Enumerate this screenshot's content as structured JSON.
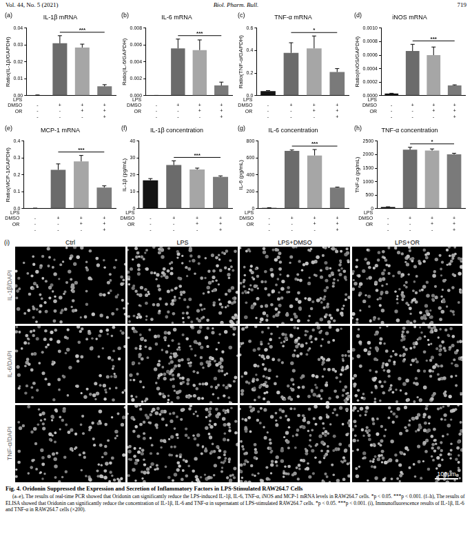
{
  "header": {
    "volume": "Vol. 44, No. 5 (2021)",
    "journal": "Biol. Pharm. Bull.",
    "page": "719"
  },
  "chart_data": [
    {
      "panel": "(a)",
      "type": "bar",
      "title": "IL-1β mRNA",
      "y_label": "Ratio(IL-1β/GAPDH)",
      "categories": [
        [
          "-",
          "-",
          "-"
        ],
        [
          "+",
          "-",
          "-"
        ],
        [
          "+",
          "+",
          "-"
        ],
        [
          "+",
          "+",
          "+"
        ]
      ],
      "category_rows": [
        "LPS",
        "DMSO",
        "OR"
      ],
      "values": [
        0.0003,
        0.031,
        0.0285,
        0.0055
      ],
      "errors": [
        0.0001,
        0.0045,
        0.002,
        0.001
      ],
      "colors": [
        "#141414",
        "#6b6b6b",
        "#a6a6a6",
        "#7a7a7a"
      ],
      "ylim": [
        0,
        0.04
      ],
      "yticks": [
        {
          "value": 0,
          "label": "0.00"
        },
        {
          "value": 0.01,
          "label": "0.01"
        },
        {
          "value": 0.02,
          "label": "0.02"
        },
        {
          "value": 0.03,
          "label": "0.03"
        },
        {
          "value": 0.04,
          "label": "0.04"
        }
      ],
      "grid": false,
      "significance": [
        {
          "bars": [
            1,
            3
          ],
          "label": "***"
        }
      ]
    },
    {
      "panel": "(b)",
      "type": "bar",
      "title": "IL-6 mRNA",
      "y_label": "Ratio(IL-6/GAPDH)",
      "categories": [
        [
          "-",
          "-",
          "-"
        ],
        [
          "+",
          "-",
          "-"
        ],
        [
          "+",
          "+",
          "-"
        ],
        [
          "+",
          "+",
          "+"
        ]
      ],
      "category_rows": [
        "LPS",
        "DMSO",
        "OR"
      ],
      "values": [
        2e-05,
        0.0056,
        0.0054,
        0.0012
      ],
      "errors": [
        1e-05,
        0.0011,
        0.0012,
        0.0004
      ],
      "colors": [
        "#141414",
        "#6b6b6b",
        "#a6a6a6",
        "#7a7a7a"
      ],
      "ylim": [
        0,
        0.008
      ],
      "yticks": [
        {
          "value": 0,
          "label": "0.000"
        },
        {
          "value": 0.002,
          "label": "0.002"
        },
        {
          "value": 0.004,
          "label": "0.004"
        },
        {
          "value": 0.006,
          "label": "0.006"
        },
        {
          "value": 0.008,
          "label": "0.008"
        }
      ],
      "grid": false,
      "significance": [
        {
          "bars": [
            1,
            3
          ],
          "label": "***"
        }
      ]
    },
    {
      "panel": "(c)",
      "type": "bar",
      "title": "TNF-α mRNA",
      "y_label": "Ratio(TNF-α/GAPDH)",
      "categories": [
        [
          "-",
          "-",
          "-"
        ],
        [
          "+",
          "-",
          "-"
        ],
        [
          "+",
          "+",
          "-"
        ],
        [
          "+",
          "+",
          "+"
        ]
      ],
      "category_rows": [
        "LPS",
        "DMSO",
        "OR"
      ],
      "values": [
        0.04,
        0.38,
        0.42,
        0.21
      ],
      "errors": [
        0.005,
        0.09,
        0.11,
        0.03
      ],
      "colors": [
        "#141414",
        "#6b6b6b",
        "#a6a6a6",
        "#7a7a7a"
      ],
      "ylim": [
        0,
        0.6
      ],
      "yticks": [
        {
          "value": 0,
          "label": "0.0"
        },
        {
          "value": 0.2,
          "label": "0.2"
        },
        {
          "value": 0.4,
          "label": "0.4"
        },
        {
          "value": 0.6,
          "label": "0.6"
        }
      ],
      "grid": false,
      "significance": [
        {
          "bars": [
            1,
            3
          ],
          "label": "*"
        }
      ]
    },
    {
      "panel": "(d)",
      "type": "bar",
      "title": "iNOS mRNA",
      "y_label": "Ratio(iNOS/GAPDH)",
      "categories": [
        [
          "-",
          "-",
          "-"
        ],
        [
          "+",
          "-",
          "-"
        ],
        [
          "+",
          "+",
          "-"
        ],
        [
          "+",
          "+",
          "+"
        ]
      ],
      "category_rows": [
        "LPS",
        "DMSO",
        "OR"
      ],
      "values": [
        3e-05,
        0.00066,
        0.0006,
        0.00015
      ],
      "errors": [
        5e-06,
        0.0001,
        0.00012,
        1e-05
      ],
      "colors": [
        "#141414",
        "#6b6b6b",
        "#a6a6a6",
        "#7a7a7a"
      ],
      "ylim": [
        0,
        0.001
      ],
      "yticks": [
        {
          "value": 0,
          "label": "0.0000"
        },
        {
          "value": 0.0002,
          "label": "0.0002"
        },
        {
          "value": 0.0004,
          "label": "0.0004"
        },
        {
          "value": 0.0006,
          "label": "0.0006"
        },
        {
          "value": 0.0008,
          "label": "0.0008"
        },
        {
          "value": 0.001,
          "label": "0.0010"
        }
      ],
      "grid": false,
      "significance": [
        {
          "bars": [
            1,
            3
          ],
          "label": "***"
        }
      ]
    },
    {
      "panel": "(e)",
      "type": "bar",
      "title": "MCP-1 mRNA",
      "y_label": "Ratio(MCP-1/GAPDH)",
      "categories": [
        [
          "-",
          "-",
          "-"
        ],
        [
          "+",
          "-",
          "-"
        ],
        [
          "+",
          "+",
          "-"
        ],
        [
          "+",
          "+",
          "+"
        ]
      ],
      "category_rows": [
        "LPS",
        "DMSO",
        "OR"
      ],
      "values": [
        0.002,
        0.23,
        0.28,
        0.125
      ],
      "errors": [
        0.001,
        0.035,
        0.035,
        0.01
      ],
      "colors": [
        "#141414",
        "#6b6b6b",
        "#a6a6a6",
        "#7a7a7a"
      ],
      "ylim": [
        0,
        0.4
      ],
      "yticks": [
        {
          "value": 0,
          "label": "0.0"
        },
        {
          "value": 0.1,
          "label": "0.1"
        },
        {
          "value": 0.2,
          "label": "0.2"
        },
        {
          "value": 0.3,
          "label": "0.3"
        },
        {
          "value": 0.4,
          "label": "0.4"
        }
      ],
      "grid": false,
      "significance": [
        {
          "bars": [
            1,
            3
          ],
          "label": "***"
        }
      ]
    },
    {
      "panel": "(f)",
      "type": "bar",
      "title": "IL-1β concentration",
      "y_label": "IL-1β (pg/mL)",
      "categories": [
        [
          "-",
          "-",
          "-"
        ],
        [
          "+",
          "-",
          "-"
        ],
        [
          "+",
          "+",
          "-"
        ],
        [
          "+",
          "+",
          "+"
        ]
      ],
      "category_rows": [
        "LPS",
        "DMSO",
        "OR"
      ],
      "values": [
        16.8,
        25.8,
        23.2,
        18.8
      ],
      "errors": [
        1,
        2.5,
        0.8,
        0.6
      ],
      "colors": [
        "#141414",
        "#6b6b6b",
        "#a6a6a6",
        "#7a7a7a"
      ],
      "ylim": [
        0,
        40
      ],
      "yticks": [
        0,
        10,
        20,
        30,
        40
      ],
      "grid": false,
      "significance": [
        {
          "bars": [
            1,
            3
          ],
          "label": "***"
        }
      ]
    },
    {
      "panel": "(g)",
      "type": "bar",
      "title": "IL-6 concentration",
      "y_label": "IL-6 (pg/mL)",
      "categories": [
        [
          "-",
          "-",
          "-"
        ],
        [
          "+",
          "-",
          "-"
        ],
        [
          "+",
          "+",
          "-"
        ],
        [
          "+",
          "+",
          "+"
        ]
      ],
      "category_rows": [
        "LPS",
        "DMSO",
        "OR"
      ],
      "values": [
        8,
        685,
        630,
        250
      ],
      "errors": [
        2,
        10,
        70,
        5
      ],
      "colors": [
        "#141414",
        "#6b6b6b",
        "#a6a6a6",
        "#7a7a7a"
      ],
      "ylim": [
        0,
        800
      ],
      "yticks": [
        0,
        200,
        400,
        600,
        800
      ],
      "grid": false,
      "significance": [
        {
          "bars": [
            1,
            3
          ],
          "label": "***"
        }
      ]
    },
    {
      "panel": "(h)",
      "type": "bar",
      "title": "TNF-α concentration",
      "y_label": "TNF-α (pg/mL)",
      "categories": [
        [
          "-",
          "-",
          "-"
        ],
        [
          "+",
          "-",
          "-"
        ],
        [
          "+",
          "+",
          "-"
        ],
        [
          "+",
          "+",
          "+"
        ]
      ],
      "category_rows": [
        "LPS",
        "DMSO",
        "OR"
      ],
      "values": [
        60,
        2180,
        2150,
        2010
      ],
      "errors": [
        10,
        90,
        60,
        40
      ],
      "colors": [
        "#141414",
        "#6b6b6b",
        "#a6a6a6",
        "#7a7a7a"
      ],
      "ylim": [
        0,
        2500
      ],
      "yticks": [
        0,
        500,
        1000,
        1500,
        2000,
        2500
      ],
      "grid": false,
      "significance": [
        {
          "bars": [
            1,
            3
          ],
          "label": "*"
        }
      ]
    }
  ],
  "images": {
    "panel": "(i)",
    "columns": [
      "Ctrl",
      "LPS",
      "LPS+DMSO",
      "LPS+OR"
    ],
    "rows": [
      "IL-1β/DAPI",
      "IL-6/DAPI",
      "TNF-α/DAPI"
    ],
    "scale_bar": "100μm"
  },
  "caption": {
    "title": "Fig. 4.  Oridonin Suppressed the Expression and Secretion of Inflammatory Factors in LPS-Stimulated RAW264.7 Cells",
    "text": "(a–e), The results of real-time PCR showed that Oridonin can significantly reduce the LPS-induced IL-1β, IL-6, TNF-α, iNOS and MCP-1 mRNA levels in RAW264.7 cells. *p < 0.05. ***p < 0.001. (f–h), The results of ELISA showed that Oridonin can significantly reduce the concentration of IL-1β, IL-6 and TNF-α in supernatant of LPS-stimulated RAW264.7 cells. *p < 0.05. ***p < 0.001. (i), Immunofluorescence results of IL-1β, IL-6 and TNF-α in RAW264.7 cells (×200)."
  }
}
